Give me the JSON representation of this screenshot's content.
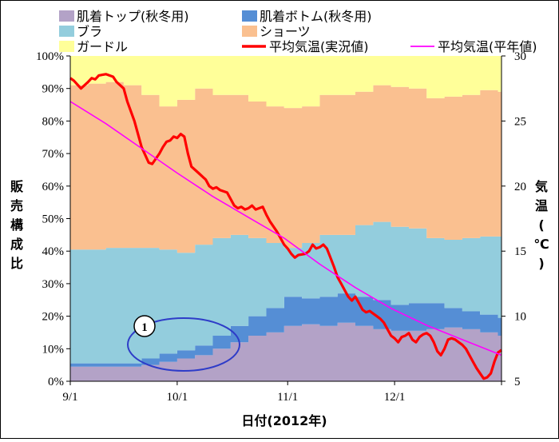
{
  "chart_data": {
    "type": "area",
    "xlabel": "日付(2012年)",
    "ylabel": "販売構成比",
    "y2label": "気温(℃)",
    "x_range": [
      "9/1",
      "12/31"
    ],
    "x_ticks": [
      "9/1",
      "10/1",
      "11/1",
      "12/1"
    ],
    "x_tick_days": [
      0,
      30,
      61,
      91
    ],
    "ylim": [
      0,
      100
    ],
    "y_ticks": [
      "0%",
      "10%",
      "20%",
      "30%",
      "40%",
      "50%",
      "60%",
      "70%",
      "80%",
      "90%",
      "100%"
    ],
    "y2lim": [
      5,
      30
    ],
    "y2_ticks": [
      "5",
      "10",
      "15",
      "20",
      "25",
      "30"
    ],
    "grid": false,
    "legend_position": "top",
    "x_days": [
      0,
      5,
      10,
      15,
      20,
      25,
      30,
      35,
      40,
      45,
      50,
      55,
      60,
      65,
      70,
      75,
      80,
      85,
      90,
      95,
      100,
      105,
      110,
      115,
      120,
      121
    ],
    "series": [
      {
        "name": "肌着トップ(秋冬用)",
        "color": "#b3a2c7",
        "kind": "stacked_area",
        "values": [
          4.5,
          4.5,
          4.5,
          4.5,
          5,
          6,
          7,
          8,
          10,
          12,
          14,
          15,
          17,
          17.5,
          17,
          18,
          17,
          16,
          15.5,
          15.5,
          16,
          16.5,
          16,
          15,
          14,
          12
        ]
      },
      {
        "name": "肌着ボトム(秋冬用)",
        "color": "#558ed5",
        "kind": "stacked_area",
        "values": [
          1,
          1,
          1,
          1,
          2,
          2.5,
          2.5,
          3,
          4,
          5,
          6,
          7.5,
          9,
          8,
          9,
          9,
          9,
          9,
          8,
          8.5,
          8,
          6,
          5.5,
          5.5,
          5.5,
          4
        ]
      },
      {
        "name": "ブラ",
        "color": "#93cddd",
        "kind": "stacked_area",
        "values": [
          35,
          35,
          35.5,
          35.5,
          34,
          32,
          30,
          31,
          30,
          28,
          24,
          20,
          15,
          17,
          19,
          18,
          22,
          24,
          24,
          23,
          20,
          21,
          22.5,
          24,
          25,
          28.5
        ]
      },
      {
        "name": "ショーツ",
        "color": "#fac090",
        "kind": "stacked_area",
        "values": [
          50.5,
          51,
          51,
          50,
          47,
          44,
          47,
          48,
          44,
          43,
          42,
          42,
          43,
          42,
          43,
          43,
          41,
          42,
          43,
          43,
          43,
          44,
          44,
          45,
          44.5,
          50
        ]
      },
      {
        "name": "ガードル",
        "color": "#ffff99",
        "kind": "stacked_area",
        "values": [
          9,
          8.5,
          8,
          9,
          12,
          15.5,
          13.5,
          10,
          12,
          12,
          14,
          15.5,
          16,
          15.5,
          12,
          12,
          11,
          9,
          9.5,
          10,
          13,
          12.5,
          12,
          10.5,
          11,
          5.5
        ]
      },
      {
        "name": "平均気温(実況値)",
        "color": "#ff0000",
        "kind": "line",
        "axis": "right",
        "x": [
          0,
          1,
          3,
          5,
          6,
          7,
          8,
          10,
          12,
          13,
          15,
          16,
          18,
          19,
          20,
          22,
          23,
          25,
          26,
          27,
          28,
          29,
          30,
          31,
          32,
          33,
          34,
          36,
          38,
          39,
          40,
          41,
          42,
          44,
          46,
          47,
          48,
          49,
          50,
          51,
          52,
          53,
          54,
          55,
          56,
          58,
          59,
          60,
          61,
          62,
          63,
          64,
          66,
          67,
          68,
          69,
          70,
          71,
          72,
          73,
          74,
          75,
          76,
          77,
          78,
          79,
          80,
          81,
          82,
          83,
          84,
          85,
          86,
          87,
          88,
          89,
          90,
          91,
          92,
          93,
          94,
          95,
          96,
          97,
          98,
          99,
          100,
          101,
          102,
          103,
          104,
          105,
          106,
          107,
          108,
          109,
          110,
          111,
          112,
          113,
          114,
          115,
          116,
          117,
          118,
          119,
          120,
          121
        ],
        "values": [
          28.3,
          28.1,
          27.5,
          28.0,
          28.3,
          28.2,
          28.5,
          28.6,
          28.4,
          28.0,
          27.5,
          26.5,
          25.0,
          24.0,
          23.0,
          21.8,
          21.7,
          22.5,
          23.0,
          23.4,
          23.5,
          23.8,
          23.7,
          24.0,
          23.8,
          22.5,
          21.5,
          21.0,
          20.5,
          20.0,
          19.8,
          19.9,
          19.7,
          19.5,
          18.5,
          18.3,
          18.4,
          18.2,
          18.3,
          18.5,
          18.2,
          18.3,
          18.4,
          17.8,
          17.3,
          16.5,
          16.0,
          15.5,
          15.2,
          14.8,
          14.5,
          14.7,
          14.8,
          15.0,
          15.5,
          15.2,
          15.3,
          15.5,
          15.2,
          14.5,
          13.8,
          13.0,
          12.5,
          12.0,
          11.5,
          11.2,
          11.5,
          11.0,
          10.5,
          10.3,
          10.4,
          10.2,
          10.0,
          9.8,
          9.5,
          9.0,
          8.5,
          8.3,
          8.0,
          8.4,
          8.5,
          8.7,
          8.2,
          8.0,
          8.4,
          8.6,
          8.7,
          8.5,
          8.0,
          7.3,
          7.0,
          7.5,
          8.2,
          8.3,
          8.2,
          8.0,
          7.8,
          7.5,
          7.0,
          6.5,
          6.0,
          5.6,
          5.2,
          5.3,
          5.6,
          6.5,
          7.2,
          7.4
        ]
      },
      {
        "name": "平均気温(平年値)",
        "color": "#ff00ff",
        "kind": "line",
        "axis": "right",
        "x": [
          0,
          10,
          20,
          30,
          40,
          50,
          60,
          70,
          80,
          90,
          100,
          110,
          121
        ],
        "values": [
          26.5,
          24.8,
          22.9,
          21.0,
          19.2,
          17.6,
          16.0,
          14.0,
          12.2,
          10.6,
          9.3,
          8.2,
          7.0
        ]
      }
    ],
    "annotations": [
      {
        "label": "1",
        "shape": "ellipse",
        "color": "#2e3cc8"
      }
    ]
  }
}
